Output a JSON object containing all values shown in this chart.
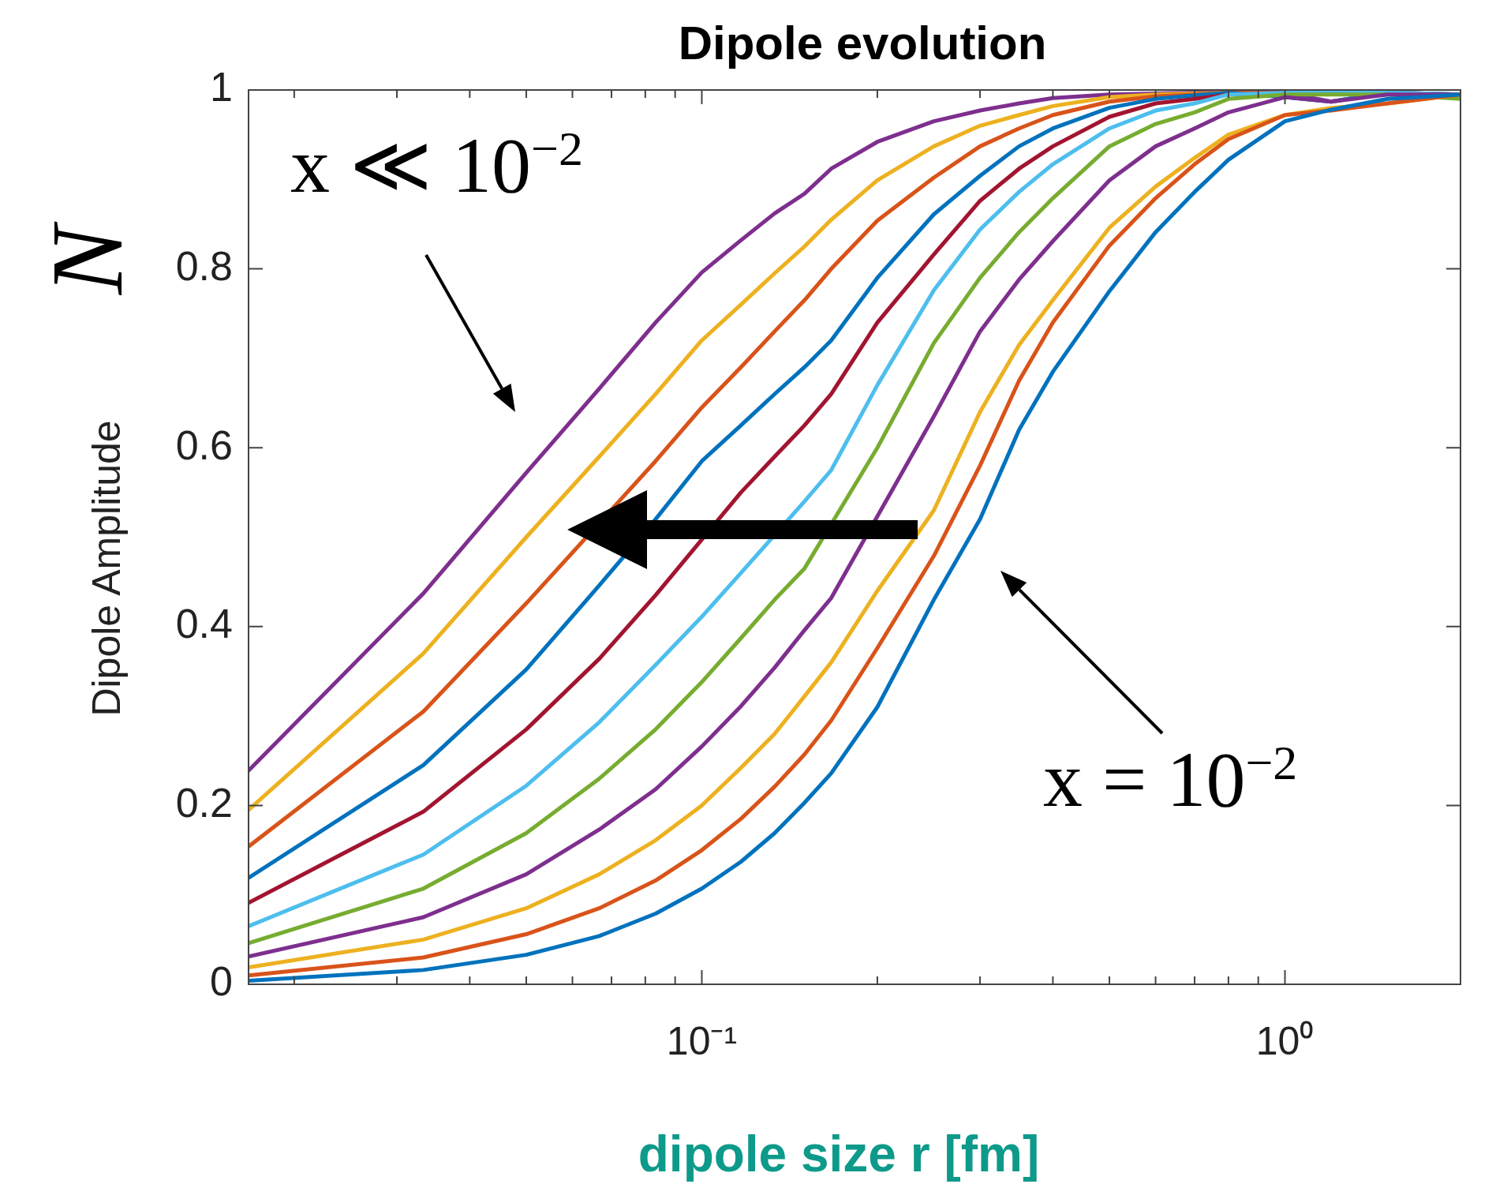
{
  "chart_data": {
    "type": "line",
    "title": "Dipole evolution",
    "xlabel": "dipole size r [fm]",
    "ylabel": "Dipole Amplitude",
    "annotations": [
      "N",
      "x ≪ 10$^{−2}$",
      "x = 10$^{−2}$"
    ],
    "log": "x",
    "grid": false,
    "legend": false,
    "marker": "none",
    "line_style": "solid",
    "xlim": [
      0.0167,
      2
    ],
    "ylim": [
      0,
      1
    ],
    "xticks": [
      {
        "value": 0.02,
        "label": null
      },
      {
        "value": 0.03,
        "label": null
      },
      {
        "value": 0.04,
        "label": null
      },
      {
        "value": 0.05,
        "label": null
      },
      {
        "value": 0.06,
        "label": null
      },
      {
        "value": 0.07,
        "label": null
      },
      {
        "value": 0.08,
        "label": null
      },
      {
        "value": 0.09,
        "label": null
      },
      {
        "value": 0.1,
        "label": "10⁻¹"
      },
      {
        "value": 0.2,
        "label": null
      },
      {
        "value": 0.3,
        "label": null
      },
      {
        "value": 0.4,
        "label": null
      },
      {
        "value": 0.5,
        "label": null
      },
      {
        "value": 0.6,
        "label": null
      },
      {
        "value": 0.7,
        "label": null
      },
      {
        "value": 0.8,
        "label": null
      },
      {
        "value": 0.9,
        "label": null
      },
      {
        "value": 1,
        "label": "10⁰"
      },
      {
        "value": 2,
        "label": null
      }
    ],
    "yticks": [
      0,
      0.2,
      0.4,
      0.6,
      0.8,
      1
    ],
    "x": [
      0.0167,
      0.0333,
      0.05,
      0.0667,
      0.0833,
      0.1,
      0.1167,
      0.1333,
      0.15,
      0.1667,
      0.2,
      0.25,
      0.3,
      0.35,
      0.4,
      0.5,
      0.6,
      0.7,
      0.8,
      1,
      1.2,
      1.5,
      2
    ],
    "series": [
      {
        "color": "#0072bd",
        "values": [
          0.004,
          0.016,
          0.033,
          0.054,
          0.079,
          0.107,
          0.137,
          0.169,
          0.203,
          0.236,
          0.31,
          0.43,
          0.52,
          0.62,
          0.685,
          0.775,
          0.841,
          0.886,
          0.922,
          0.965,
          0.978,
          0.99,
          0.995
        ]
      },
      {
        "color": "#d95319",
        "values": [
          0.01,
          0.03,
          0.056,
          0.085,
          0.116,
          0.15,
          0.185,
          0.221,
          0.257,
          0.295,
          0.376,
          0.479,
          0.58,
          0.675,
          0.74,
          0.826,
          0.879,
          0.917,
          0.945,
          0.972,
          0.977,
          0.985,
          0.995
        ]
      },
      {
        "color": "#edb120",
        "values": [
          0.019,
          0.05,
          0.085,
          0.123,
          0.161,
          0.2,
          0.242,
          0.28,
          0.322,
          0.36,
          0.44,
          0.53,
          0.64,
          0.715,
          0.765,
          0.846,
          0.892,
          0.924,
          0.95,
          0.972,
          0.98,
          0.985,
          0.995
        ]
      },
      {
        "color": "#7e2f8e",
        "values": [
          0.031,
          0.075,
          0.123,
          0.173,
          0.218,
          0.266,
          0.311,
          0.354,
          0.396,
          0.432,
          null,
          0.635,
          0.73,
          0.788,
          0.831,
          0.899,
          0.937,
          0.957,
          0.975,
          0.992,
          0.987,
          0.995,
          0.995
        ]
      },
      {
        "color": "#77ac30",
        "values": [
          0.046,
          0.107,
          0.169,
          0.23,
          0.285,
          0.338,
          0.387,
          0.43,
          0.465,
          null,
          0.6,
          0.717,
          0.79,
          0.841,
          0.879,
          0.937,
          0.962,
          0.975,
          0.99,
          0.995,
          0.995,
          0.995,
          0.99
        ]
      },
      {
        "color": "#4dbeee",
        "values": [
          0.065,
          0.145,
          0.222,
          0.293,
          0.357,
          0.411,
          0.46,
          null,
          0.54,
          0.575,
          0.67,
          0.776,
          0.844,
          0.886,
          0.917,
          0.957,
          0.977,
          0.985,
          0.995,
          0.997,
          0.997,
          0.997,
          0.995
        ]
      },
      {
        "color": "#a2142f",
        "values": [
          0.091,
          0.193,
          0.285,
          0.364,
          0.435,
          null,
          0.55,
          0.59,
          0.625,
          0.66,
          0.74,
          0.816,
          0.876,
          0.912,
          0.937,
          0.97,
          0.985,
          0.99,
          0.995,
          0.997,
          0.997,
          null,
          null
        ]
      },
      {
        "color": "#0072bd",
        "values": [
          0.119,
          0.245,
          0.352,
          0.446,
          0.52,
          0.585,
          0.625,
          0.66,
          0.69,
          0.72,
          0.79,
          0.861,
          0.904,
          0.937,
          0.957,
          0.98,
          0.99,
          0.994,
          0.997,
          0.992,
          0.987,
          0.997,
          0.995
        ]
      },
      {
        "color": "#d95319",
        "values": [
          0.154,
          0.305,
          0.426,
          null,
          0.585,
          0.645,
          0.69,
          0.73,
          0.765,
          0.8,
          0.854,
          0.902,
          0.937,
          0.957,
          0.972,
          0.987,
          0.993,
          0.995,
          0.997,
          0.997,
          0.997,
          0.997,
          0.995
        ]
      },
      {
        "color": "#edb120",
        "values": [
          0.195,
          0.37,
          0.5,
          0.59,
          0.66,
          0.72,
          0.76,
          0.795,
          0.825,
          0.855,
          0.899,
          0.937,
          0.96,
          0.972,
          0.982,
          0.992,
          0.995,
          0.996,
          0.997,
          null,
          null,
          null,
          null
        ]
      },
      {
        "color": "#7e2f8e",
        "values": [
          0.239,
          0.437,
          0.572,
          0.666,
          0.74,
          0.796,
          0.832,
          0.862,
          0.884,
          0.912,
          0.942,
          0.965,
          0.977,
          0.985,
          0.991,
          0.995,
          0.996,
          0.997,
          0.997,
          0.997,
          0.987,
          0.997,
          0.995
        ]
      }
    ]
  }
}
